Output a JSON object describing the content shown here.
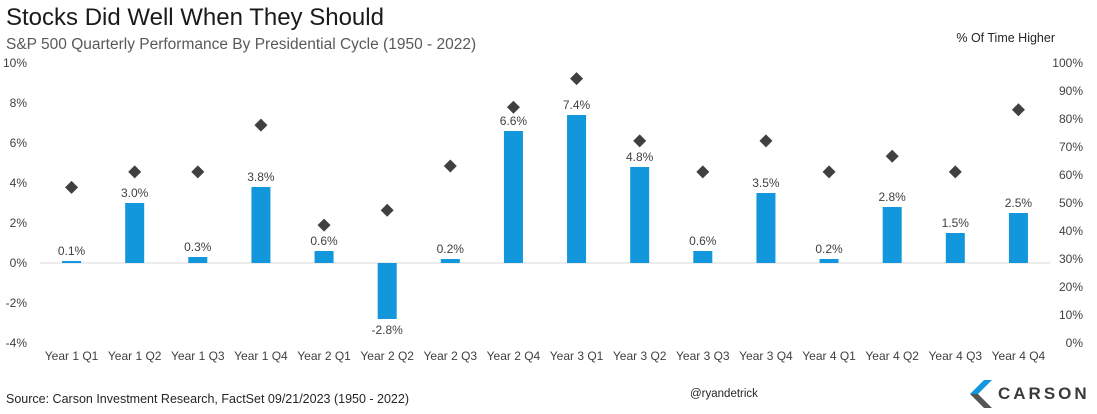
{
  "title": "Stocks Did Well When They Should",
  "subtitle": "S&P 500 Quarterly Performance By Presidential Cycle (1950 - 2022)",
  "right_axis_title": "% Of Time Higher",
  "source": "Source: Carson Investment Research, FactSet 09/21/2023 (1950 - 2022)",
  "handle": "@ryandetrick",
  "logo_text": "CARSON",
  "colors": {
    "bar": "#1296dc",
    "marker": "#404040",
    "grid": "#d9d9d9",
    "logo_blue": "#1296dc",
    "logo_gray": "#555555"
  },
  "chart_data": {
    "type": "bar",
    "categories": [
      "Year 1 Q1",
      "Year 1 Q2",
      "Year 1 Q3",
      "Year 1 Q4",
      "Year 2 Q1",
      "Year 2 Q2",
      "Year 2 Q3",
      "Year 2 Q4",
      "Year 3 Q1",
      "Year 3 Q2",
      "Year 3 Q3",
      "Year 3 Q4",
      "Year 4 Q1",
      "Year 4 Q2",
      "Year 4 Q3",
      "Year 4 Q4"
    ],
    "series": [
      {
        "values": [
          0.1,
          3.0,
          0.3,
          3.8,
          0.6,
          -2.8,
          0.2,
          6.6,
          7.4,
          4.8,
          0.6,
          3.5,
          0.2,
          2.8,
          1.5,
          2.5
        ],
        "labels": [
          "0.1%",
          "3.0%",
          "0.3%",
          "3.8%",
          "0.6%",
          "-2.8%",
          "0.2%",
          "6.6%",
          "7.4%",
          "4.8%",
          "0.6%",
          "3.5%",
          "0.2%",
          "2.8%",
          "1.5%",
          "2.5%"
        ]
      },
      {
        "values": [
          55.6,
          61.1,
          61.1,
          77.8,
          42.1,
          47.4,
          63.2,
          84.2,
          94.4,
          72.2,
          61.1,
          72.2,
          61.1,
          66.7,
          61.1,
          83.3
        ]
      }
    ],
    "ylim": [
      -4,
      10
    ],
    "yticks": [
      "-4%",
      "-2%",
      "0%",
      "2%",
      "4%",
      "6%",
      "8%",
      "10%"
    ],
    "y2lim": [
      0,
      100
    ],
    "y2ticks": [
      "0%",
      "10%",
      "20%",
      "30%",
      "40%",
      "50%",
      "60%",
      "70%",
      "80%",
      "90%",
      "100%"
    ],
    "ylabel": "",
    "y2label": "% Of Time Higher",
    "grid": false,
    "legend": "none"
  }
}
